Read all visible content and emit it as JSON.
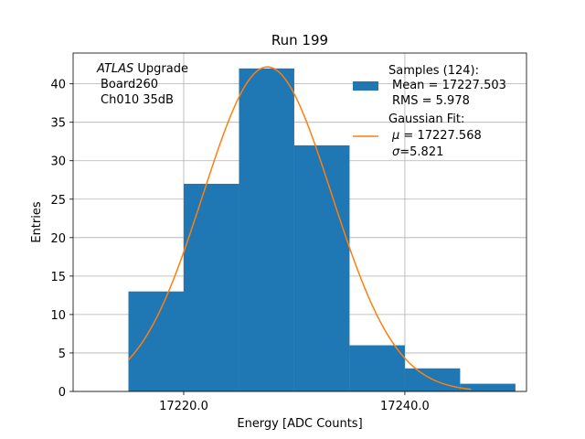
{
  "chart_data": {
    "type": "bar",
    "title": "Run 199",
    "xlabel": "Energy [ADC Counts]",
    "ylabel": "Entries",
    "xlim": [
      17210,
      17251
    ],
    "ylim": [
      0,
      44
    ],
    "grid": true,
    "x_ticks": [
      17220,
      17240
    ],
    "x_tick_labels": [
      "17220.0",
      "17240.0"
    ],
    "y_ticks": [
      0,
      5,
      10,
      15,
      20,
      25,
      30,
      35,
      40
    ],
    "y_tick_labels": [
      "0",
      "5",
      "10",
      "15",
      "20",
      "25",
      "30",
      "35",
      "40"
    ],
    "bins": [
      {
        "x0": 17215,
        "x1": 17220,
        "count": 13
      },
      {
        "x0": 17220,
        "x1": 17225,
        "count": 27
      },
      {
        "x0": 17225,
        "x1": 17230,
        "count": 42
      },
      {
        "x0": 17230,
        "x1": 17235,
        "count": 32
      },
      {
        "x0": 17235,
        "x1": 17240,
        "count": 6
      },
      {
        "x0": 17240,
        "x1": 17245,
        "count": 3
      },
      {
        "x0": 17245,
        "x1": 17250,
        "count": 1
      }
    ],
    "fit": {
      "mu": 17227.568,
      "sigma": 5.821,
      "amplitude": 42.2,
      "x_range": [
        17215,
        17246
      ]
    },
    "colors": {
      "bars": "#1f77b4",
      "fit": "#ff7f0e"
    },
    "annotation": {
      "italic_part": "ATLAS",
      "line1_rest": " Upgrade",
      "line2": "Board260",
      "line3": "Ch010 35dB"
    },
    "legend": {
      "position": "top-right",
      "samples_title": "Samples (124):",
      "samples_mean": "Mean = 17227.503",
      "samples_rms": "RMS = 5.978",
      "fit_title": "Gaussian Fit:",
      "fit_mu_symbol": "μ",
      "fit_mu_value": " = 17227.568",
      "fit_sigma_symbol": "σ",
      "fit_sigma_value": "=5.821"
    }
  }
}
